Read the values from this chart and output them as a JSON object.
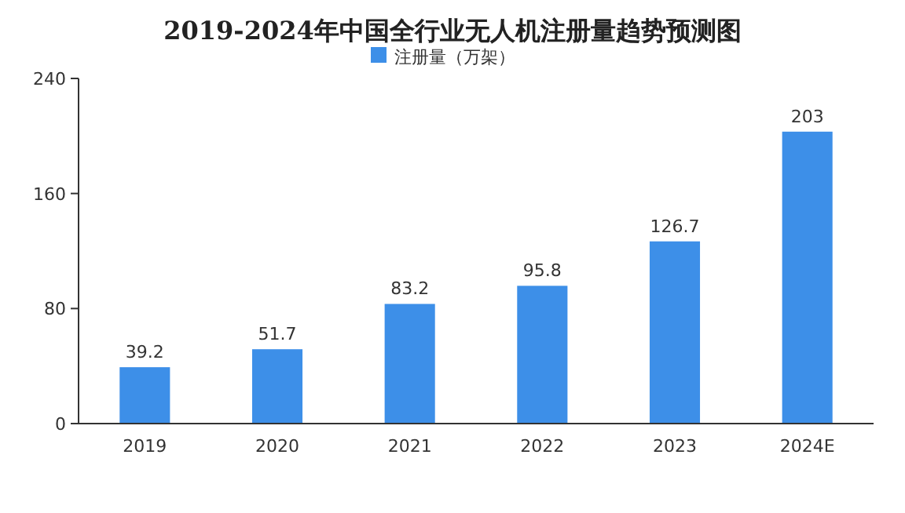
{
  "chart_data": {
    "type": "bar",
    "title": "2019-2024年中国全行业无人机注册量趋势预测图",
    "categories": [
      "2019",
      "2020",
      "2021",
      "2022",
      "2023",
      "2024E"
    ],
    "series": [
      {
        "name": "注册量（万架）",
        "color": "#3d8fe8",
        "values": [
          39.2,
          51.7,
          83.2,
          95.8,
          126.7,
          203
        ]
      }
    ],
    "ylim": [
      0,
      240
    ],
    "yticks": [
      0,
      80,
      160,
      240
    ],
    "grid": false,
    "legend": "top",
    "data_labels": true
  }
}
